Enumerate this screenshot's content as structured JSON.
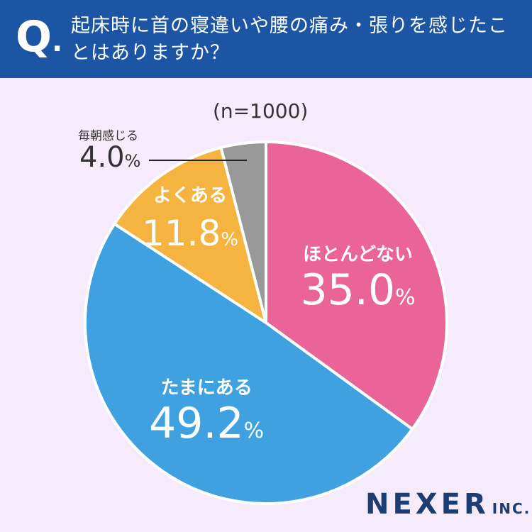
{
  "header": {
    "q_mark": "Q",
    "q_dot": ".",
    "question": "起床時に首の寝違いや腰の痛み・張りを感じたことはありますか？"
  },
  "sample_label": "(n=1000)",
  "chart_data": {
    "type": "pie",
    "title": "起床時に首の寝違いや腰の痛み・張りを感じたことはありますか？",
    "subtitle": "(n=1000)",
    "start": "top",
    "direction": "clockwise",
    "slices": [
      {
        "label": "ほとんどない",
        "value": 35.0,
        "display": "35.0",
        "color": "#eb6497"
      },
      {
        "label": "たまにある",
        "value": 49.2,
        "display": "49.2",
        "color": "#3fa1df"
      },
      {
        "label": "よくある",
        "value": 11.8,
        "display": "11.8",
        "color": "#f5b340"
      },
      {
        "label": "毎朝感じる",
        "value": 4.0,
        "display": "4.0",
        "color": "#999999"
      }
    ],
    "unit": "%"
  },
  "logo": {
    "name": "NEXER",
    "suffix": "INC."
  }
}
